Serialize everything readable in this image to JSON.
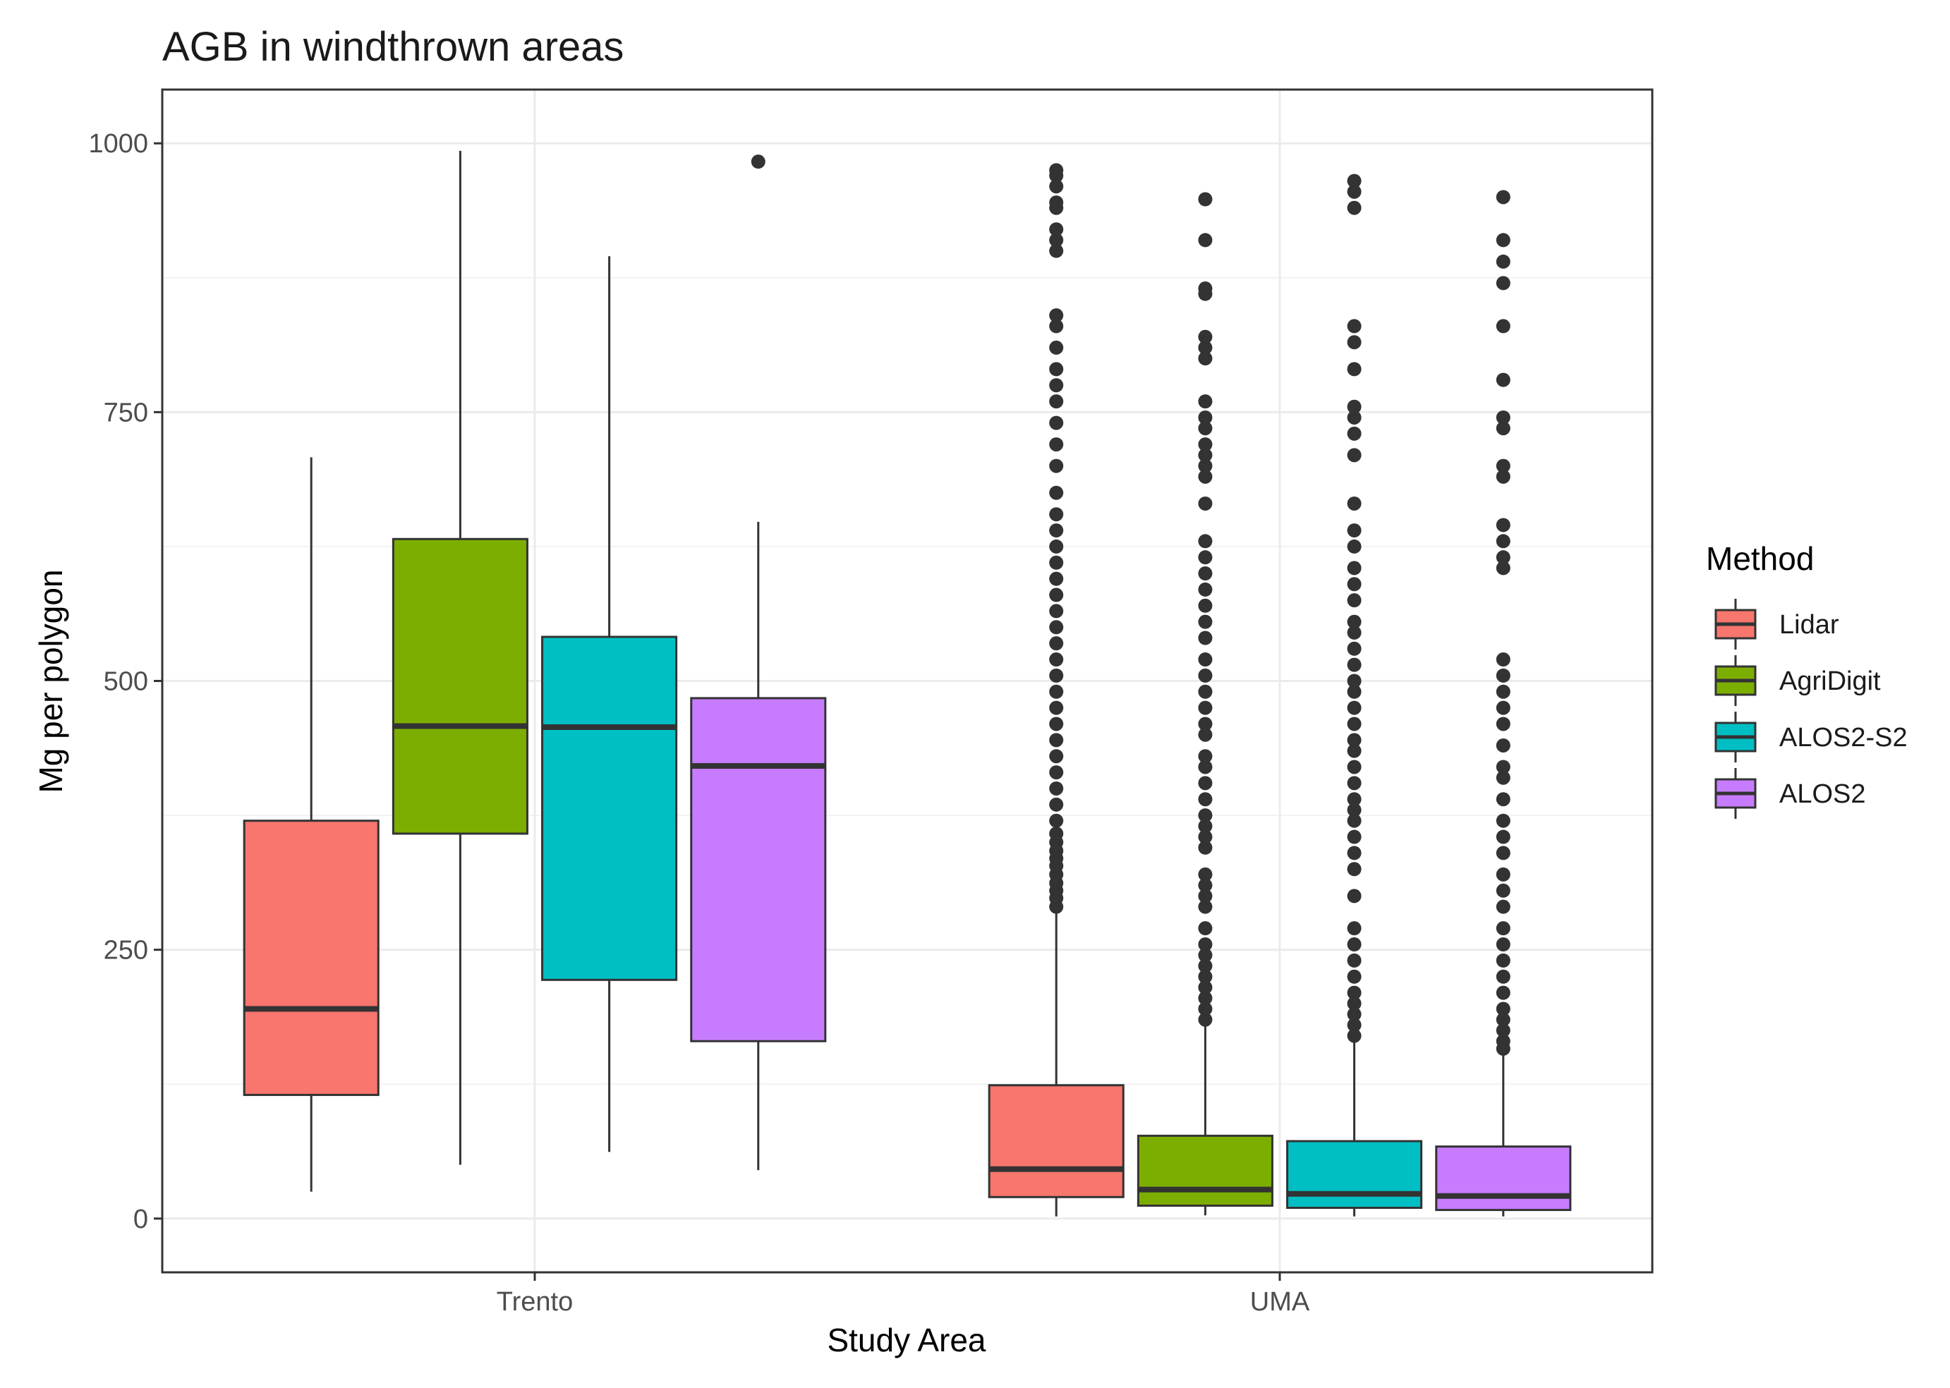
{
  "chart_data": {
    "type": "boxplot",
    "title": "AGB in windthrown areas",
    "xlabel": "Study Area",
    "ylabel": "Mg per polygon",
    "ylim": [
      -50,
      1050
    ],
    "yticks": [
      0,
      250,
      500,
      750,
      1000
    ],
    "grid": true,
    "categories": [
      "Trento",
      "UMA"
    ],
    "legend": {
      "title": "Method",
      "position": "right",
      "entries": [
        "Lidar",
        "AgriDigit",
        "ALOS2-S2",
        "ALOS2"
      ]
    },
    "colors": {
      "Lidar": "#F8766D",
      "AgriDigit": "#7CAE00",
      "ALOS2-S2": "#00BFC4",
      "ALOS2": "#C77CFF"
    },
    "series": [
      {
        "name": "Lidar",
        "boxes": [
          {
            "category": "Trento",
            "min": 25,
            "q1": 115,
            "median": 195,
            "q3": 370,
            "max": 708,
            "outliers": []
          },
          {
            "category": "UMA",
            "min": 2,
            "q1": 20,
            "median": 46,
            "q3": 124,
            "max": 285,
            "outliers": [
              290,
              298,
              305,
              312,
              320,
              328,
              335,
              342,
              350,
              358,
              370,
              385,
              400,
              415,
              430,
              445,
              460,
              475,
              490,
              505,
              520,
              535,
              550,
              565,
              580,
              595,
              610,
              625,
              640,
              655,
              675,
              700,
              720,
              740,
              760,
              775,
              790,
              810,
              830,
              840,
              900,
              910,
              920,
              940,
              945,
              960,
              970,
              975
            ]
          }
        ]
      },
      {
        "name": "AgriDigit",
        "boxes": [
          {
            "category": "Trento",
            "min": 50,
            "q1": 358,
            "median": 458,
            "q3": 632,
            "max": 993,
            "outliers": []
          },
          {
            "category": "UMA",
            "min": 3,
            "q1": 12,
            "median": 27,
            "q3": 77,
            "max": 180,
            "outliers": [
              185,
              195,
              205,
              215,
              225,
              235,
              245,
              255,
              270,
              290,
              300,
              310,
              320,
              345,
              355,
              365,
              375,
              390,
              405,
              420,
              430,
              450,
              460,
              475,
              490,
              505,
              520,
              540,
              555,
              570,
              585,
              600,
              615,
              630,
              665,
              690,
              700,
              710,
              720,
              735,
              745,
              760,
              800,
              810,
              820,
              860,
              865,
              910,
              948
            ]
          }
        ]
      },
      {
        "name": "ALOS2-S2",
        "boxes": [
          {
            "category": "Trento",
            "min": 62,
            "q1": 222,
            "median": 457,
            "q3": 541,
            "max": 895,
            "outliers": []
          },
          {
            "category": "UMA",
            "min": 2,
            "q1": 10,
            "median": 23,
            "q3": 72,
            "max": 165,
            "outliers": [
              170,
              180,
              190,
              200,
              210,
              225,
              240,
              255,
              270,
              300,
              325,
              340,
              355,
              370,
              380,
              390,
              405,
              420,
              435,
              445,
              460,
              475,
              490,
              500,
              515,
              530,
              545,
              555,
              575,
              590,
              605,
              625,
              640,
              665,
              710,
              730,
              745,
              755,
              790,
              815,
              830,
              940,
              955,
              965
            ]
          }
        ]
      },
      {
        "name": "ALOS2",
        "boxes": [
          {
            "category": "Trento",
            "min": 45,
            "q1": 165,
            "median": 421,
            "q3": 484,
            "max": 648,
            "outliers": [
              983
            ]
          },
          {
            "category": "UMA",
            "min": 2,
            "q1": 8,
            "median": 21,
            "q3": 67,
            "max": 152,
            "outliers": [
              158,
              165,
              175,
              185,
              195,
              210,
              225,
              240,
              255,
              270,
              290,
              305,
              320,
              340,
              355,
              370,
              390,
              410,
              420,
              440,
              460,
              475,
              490,
              505,
              520,
              605,
              615,
              630,
              645,
              690,
              700,
              735,
              745,
              780,
              830,
              870,
              890,
              910,
              950
            ]
          }
        ]
      }
    ]
  }
}
